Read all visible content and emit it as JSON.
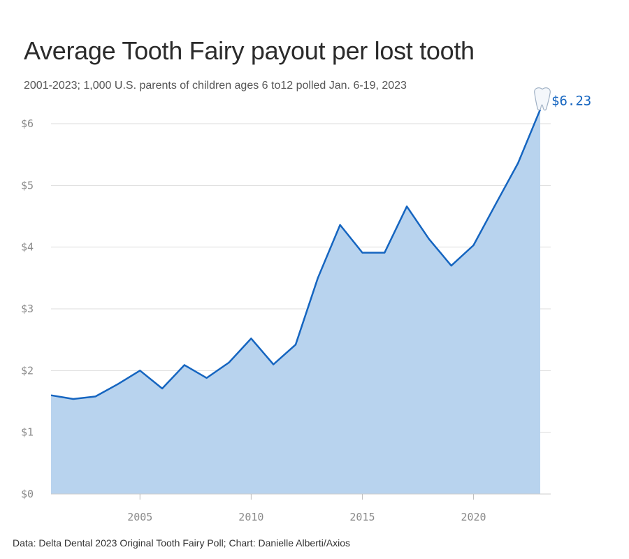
{
  "header": {
    "title": "Average Tooth Fairy payout per lost tooth",
    "subtitle": "2001-2023; 1,000 U.S. parents of children ages 6 to12 polled Jan. 6-19, 2023"
  },
  "footer": {
    "source": "Data: Delta Dental 2023 Original Tooth Fairy Poll; Chart: Danielle Alberti/Axios"
  },
  "colors": {
    "line": "#1565c0",
    "area": "#b8d3ee",
    "grid": "#dddddd",
    "axis_text": "#8a8a8a",
    "end_label": "#1565c0"
  },
  "chart_data": {
    "type": "area",
    "title": "Average Tooth Fairy payout per lost tooth",
    "x": [
      2001,
      2002,
      2003,
      2004,
      2005,
      2006,
      2007,
      2008,
      2009,
      2010,
      2011,
      2012,
      2013,
      2014,
      2015,
      2016,
      2017,
      2018,
      2019,
      2020,
      2021,
      2022,
      2023
    ],
    "values": [
      1.6,
      1.54,
      1.58,
      1.78,
      2.0,
      1.71,
      2.09,
      1.88,
      2.13,
      2.52,
      2.1,
      2.42,
      3.5,
      4.36,
      3.91,
      3.91,
      4.66,
      4.13,
      3.7,
      4.03,
      4.7,
      5.36,
      6.23
    ],
    "xlim": [
      2001,
      2023
    ],
    "ylim": [
      0,
      6
    ],
    "y_ticks": [
      0,
      1,
      2,
      3,
      4,
      5,
      6
    ],
    "y_tick_labels": [
      "$0",
      "$1",
      "$2",
      "$3",
      "$4",
      "$5",
      "$6"
    ],
    "x_ticks": [
      2005,
      2010,
      2015,
      2020
    ],
    "x_tick_labels": [
      "2005",
      "2010",
      "2015",
      "2020"
    ],
    "grid": true,
    "end_annotation": {
      "icon": "tooth-icon",
      "label": "$6.23"
    }
  }
}
